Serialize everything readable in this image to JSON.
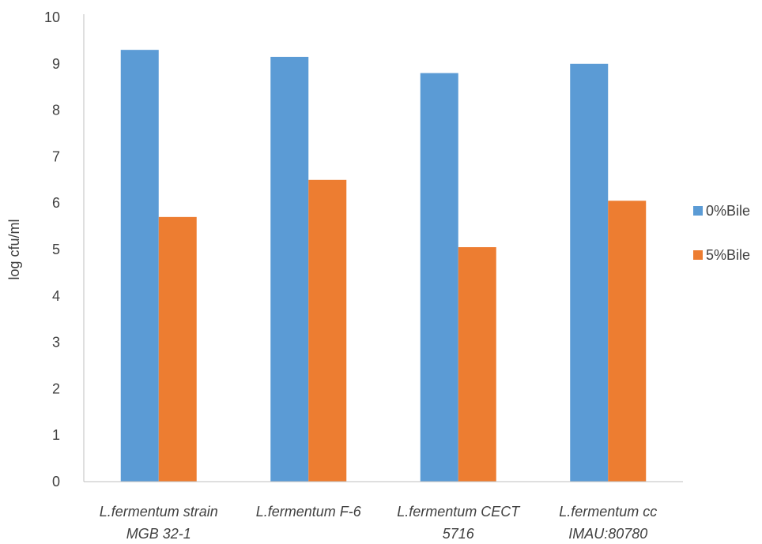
{
  "chart_data": {
    "type": "bar",
    "categories": [
      [
        "L.fermentum strain",
        "MGB 32-1"
      ],
      [
        "L.fermentum F-6"
      ],
      [
        "L.fermentum CECT",
        "5716"
      ],
      [
        "L.fermentum cc",
        "IMAU:80780"
      ]
    ],
    "series": [
      {
        "name": "0%Bile",
        "color": "#5B9BD5",
        "values": [
          9.3,
          9.15,
          8.8,
          9.0
        ]
      },
      {
        "name": "5%Bile",
        "color": "#ED7D31",
        "values": [
          5.7,
          6.5,
          5.05,
          6.05
        ]
      }
    ],
    "title": "",
    "xlabel": "",
    "ylabel": "log cfu/ml",
    "ylim": [
      0,
      10
    ],
    "yticks": [
      "0",
      "1",
      "2",
      "3",
      "4",
      "5",
      "6",
      "7",
      "8",
      "9",
      "10"
    ],
    "grid": false,
    "legend_position": "right"
  }
}
